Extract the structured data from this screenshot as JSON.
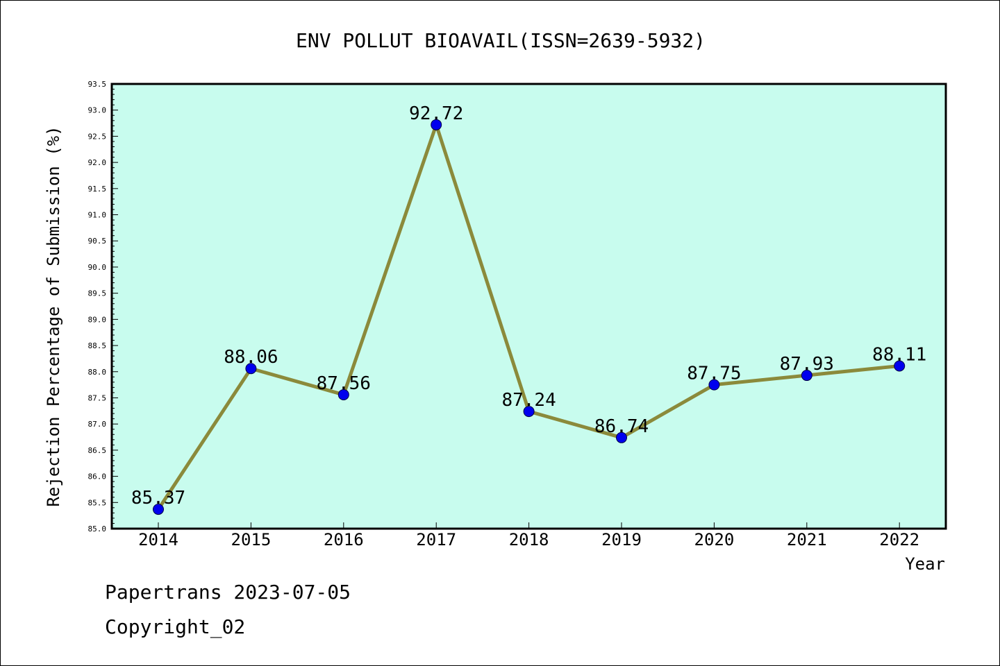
{
  "chart_data": {
    "type": "line",
    "title": "ENV POLLUT BIOAVAIL(ISSN=2639-5932)",
    "xlabel": "Year",
    "ylabel": "Rejection Percentage of Submission (%)",
    "categories": [
      "2014",
      "2015",
      "2016",
      "2017",
      "2018",
      "2019",
      "2020",
      "2021",
      "2022"
    ],
    "values": [
      85.37,
      88.06,
      87.56,
      92.72,
      87.24,
      86.74,
      87.75,
      87.93,
      88.11
    ],
    "data_labels": [
      "85.37",
      "88.06",
      "87.56",
      "92.72",
      "87.24",
      "86.74",
      "87.75",
      "87.93",
      "88.11"
    ],
    "ylim": [
      85.0,
      93.5
    ],
    "yticks": [
      "85.0",
      "85.5",
      "86.0",
      "86.5",
      "87.0",
      "87.5",
      "88.0",
      "88.5",
      "89.0",
      "89.5",
      "90.0",
      "90.5",
      "91.0",
      "91.5",
      "92.0",
      "92.5",
      "93.0",
      "93.5"
    ],
    "grid": false,
    "colors": {
      "plot_background": "#c8fcee",
      "line": "#8b8a3b",
      "marker": "#0000ee"
    }
  },
  "footer": {
    "line1": "Papertrans 2023-07-05",
    "line2": "Copyright_02"
  }
}
